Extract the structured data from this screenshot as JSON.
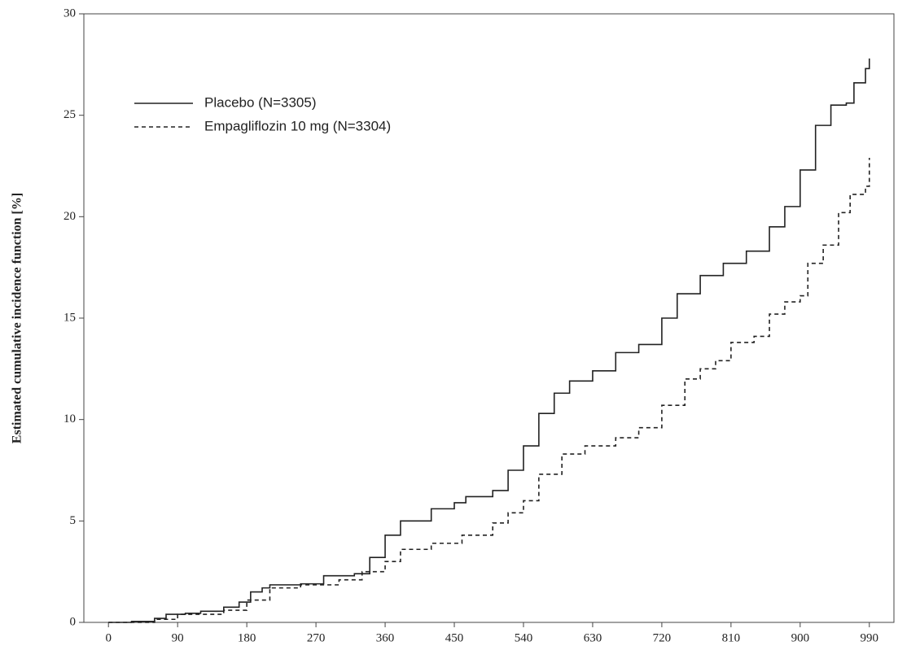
{
  "chart_data": {
    "type": "step",
    "y_label": "Estimated cumulative incidence function [%]",
    "xlim": [
      -32,
      1022
    ],
    "ylim": [
      0,
      30
    ],
    "xticks": [
      0,
      90,
      180,
      270,
      360,
      450,
      540,
      630,
      720,
      810,
      900,
      990
    ],
    "yticks": [
      0,
      5,
      10,
      15,
      20,
      25,
      30
    ],
    "legend": "upper left",
    "series": [
      {
        "name": "Placebo (N=3305)",
        "color": "#222222",
        "dash": false,
        "x": [
          0,
          30,
          60,
          75,
          100,
          120,
          150,
          170,
          185,
          200,
          210,
          250,
          280,
          320,
          340,
          360,
          380,
          420,
          450,
          465,
          500,
          520,
          540,
          560,
          580,
          600,
          630,
          660,
          690,
          720,
          740,
          770,
          800,
          830,
          860,
          880,
          900,
          920,
          940,
          960,
          970,
          985,
          990
        ],
        "values": [
          0,
          0.05,
          0.2,
          0.4,
          0.45,
          0.55,
          0.75,
          1.0,
          1.5,
          1.7,
          1.85,
          1.9,
          2.3,
          2.4,
          3.2,
          4.3,
          5.0,
          5.6,
          5.9,
          6.2,
          6.5,
          7.5,
          8.7,
          10.3,
          11.3,
          11.9,
          12.4,
          13.3,
          13.7,
          15.0,
          16.2,
          17.1,
          17.7,
          18.3,
          19.5,
          20.5,
          22.3,
          24.5,
          25.5,
          25.6,
          26.6,
          27.3,
          27.8
        ]
      },
      {
        "name": "Empagliflozin 10 mg (N=3304)",
        "color": "#222222",
        "dash": true,
        "x": [
          0,
          60,
          90,
          150,
          180,
          210,
          250,
          300,
          330,
          360,
          380,
          420,
          460,
          500,
          520,
          540,
          560,
          590,
          620,
          660,
          690,
          720,
          750,
          770,
          790,
          810,
          840,
          860,
          880,
          900,
          910,
          930,
          950,
          965,
          985,
          990
        ],
        "values": [
          0,
          0.15,
          0.4,
          0.6,
          1.1,
          1.7,
          1.85,
          2.1,
          2.5,
          3.0,
          3.6,
          3.9,
          4.3,
          4.9,
          5.4,
          6.0,
          7.3,
          8.3,
          8.7,
          9.1,
          9.6,
          10.7,
          12.0,
          12.5,
          12.9,
          13.8,
          14.1,
          15.2,
          15.8,
          16.1,
          17.7,
          18.6,
          20.2,
          21.1,
          21.5,
          22.9
        ]
      }
    ]
  }
}
